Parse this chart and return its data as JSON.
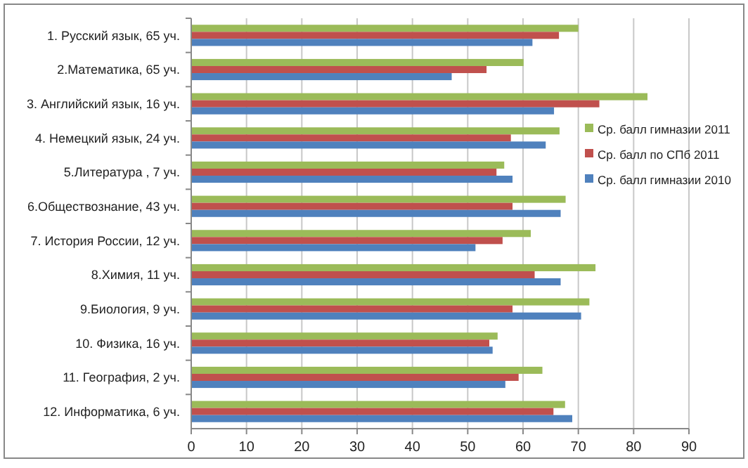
{
  "chart_data": {
    "type": "bar",
    "orientation": "horizontal",
    "categories": [
      "1.  Русский язык, 65 уч.",
      "2.Математика, 65 уч.",
      "3.  Английский язык, 16 уч.",
      "4.  Немецкий язык, 24 уч.",
      "5.Литература , 7 уч.",
      "6.Обществознание, 43 уч.",
      "7.  История России, 12 уч.",
      "8.Химия, 11 уч.",
      "9.Биология, 9 уч.",
      "10. Физика, 16 уч.",
      "11. География,  2 уч.",
      "12.  Информатика, 6 уч."
    ],
    "series": [
      {
        "name": "Ср. балл гимназии 2011",
        "color": "#9bbb59",
        "values": [
          70,
          60.1,
          82.5,
          66.6,
          56.6,
          67.7,
          61.4,
          73.1,
          72,
          55.4,
          63.5,
          67.6
        ]
      },
      {
        "name": "Ср. балл по СПб 2011",
        "color": "#c0504d",
        "values": [
          66.5,
          53.4,
          73.8,
          57.8,
          55.2,
          58.1,
          56.3,
          62.1,
          58.1,
          53.9,
          59.2,
          65.5
        ]
      },
      {
        "name": "Ср. балл гимназии 2010",
        "color": "#4f81bd",
        "values": [
          61.7,
          47.1,
          65.6,
          64.1,
          58.1,
          66.8,
          51.4,
          66.8,
          70.5,
          54.5,
          56.8,
          68.9
        ]
      }
    ],
    "xlim": [
      0,
      90
    ],
    "xticks": [
      0,
      10,
      20,
      30,
      40,
      50,
      60,
      70,
      80,
      90
    ],
    "grid": "x",
    "legend": "right"
  }
}
